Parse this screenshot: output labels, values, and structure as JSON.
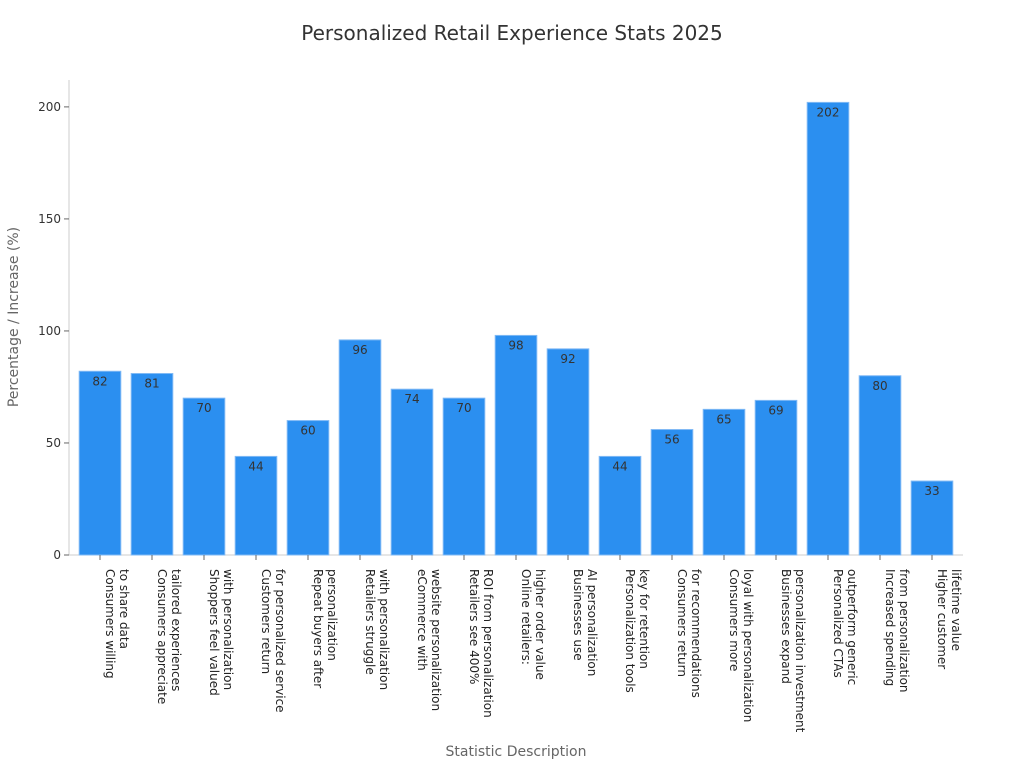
{
  "chart_data": {
    "type": "bar",
    "title": "Personalized Retail Experience Stats 2025",
    "xlabel": "Statistic Description",
    "ylabel": "Percentage / Increase (%)",
    "ylim": [
      0,
      212
    ],
    "yticks": [
      0,
      50,
      100,
      150,
      200
    ],
    "grid": false,
    "bar_color": "#2b8ff0",
    "categories": [
      [
        "Consumers willing",
        "to share data"
      ],
      [
        "Consumers appreciate",
        "tailored experiences"
      ],
      [
        "Shoppers feel valued",
        "with personalization"
      ],
      [
        "Customers return",
        "for personalized service"
      ],
      [
        "Repeat buyers after",
        "personalization"
      ],
      [
        "Retailers struggle",
        "with personalization"
      ],
      [
        "eCommerce with",
        "website personalization"
      ],
      [
        "Retailers see 400%",
        "ROI from personalization"
      ],
      [
        "Online retailers:",
        "higher order value"
      ],
      [
        "Businesses use",
        "AI personalization"
      ],
      [
        "Personalization tools",
        "key for retention"
      ],
      [
        "Consumers return",
        "for recommendations"
      ],
      [
        "Consumers more",
        "loyal with personalization"
      ],
      [
        "Businesses expand",
        "personalization investment"
      ],
      [
        "Personalized CTAs",
        "outperform generic"
      ],
      [
        "Increased spending",
        "from personalization"
      ],
      [
        "Higher customer",
        "lifetime value"
      ]
    ],
    "values": [
      82,
      81,
      70,
      44,
      60,
      96,
      74,
      70,
      98,
      92,
      44,
      56,
      65,
      69,
      202,
      80,
      33
    ]
  }
}
